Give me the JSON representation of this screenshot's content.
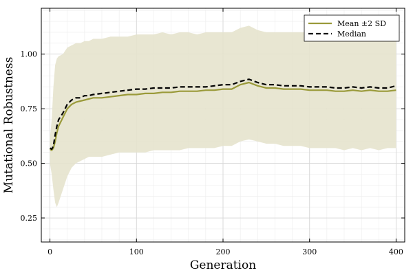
{
  "chart_data": {
    "type": "line",
    "title": "",
    "xlabel": "Generation",
    "ylabel": "Mutational Robustness",
    "xlim": [
      -10,
      410
    ],
    "ylim": [
      0.14,
      1.21
    ],
    "x_ticks": [
      0,
      100,
      200,
      300,
      400
    ],
    "x_tick_labels": [
      "0",
      "100",
      "200",
      "300",
      "400"
    ],
    "y_ticks": [
      0.25,
      0.5,
      0.75,
      1.0
    ],
    "y_tick_labels": [
      "0.25",
      "0.50",
      "0.75",
      "1.00"
    ],
    "grid": true,
    "legend_position": "top-right",
    "colors": {
      "mean": "#9a9a3a",
      "band": "#e6e3cd",
      "median": "#000000",
      "grid": "#d6d6d6"
    },
    "x": [
      0,
      2,
      4,
      6,
      8,
      10,
      15,
      20,
      25,
      30,
      35,
      40,
      45,
      50,
      60,
      70,
      80,
      90,
      100,
      110,
      120,
      130,
      140,
      150,
      160,
      170,
      180,
      190,
      200,
      210,
      220,
      230,
      240,
      250,
      260,
      270,
      280,
      290,
      300,
      310,
      320,
      330,
      340,
      350,
      360,
      370,
      380,
      390,
      400
    ],
    "series": [
      {
        "name": "Mean ±2 SD",
        "style": "solid",
        "values": [
          0.565,
          0.56,
          0.57,
          0.6,
          0.64,
          0.67,
          0.71,
          0.75,
          0.77,
          0.78,
          0.785,
          0.79,
          0.795,
          0.8,
          0.8,
          0.805,
          0.81,
          0.815,
          0.815,
          0.82,
          0.82,
          0.825,
          0.825,
          0.83,
          0.83,
          0.83,
          0.835,
          0.835,
          0.84,
          0.84,
          0.86,
          0.87,
          0.855,
          0.845,
          0.845,
          0.84,
          0.84,
          0.84,
          0.835,
          0.835,
          0.835,
          0.83,
          0.83,
          0.835,
          0.83,
          0.835,
          0.83,
          0.83,
          0.835
        ],
        "upper": [
          0.62,
          0.7,
          0.85,
          0.95,
          0.98,
          0.99,
          1.0,
          1.03,
          1.04,
          1.05,
          1.05,
          1.06,
          1.06,
          1.07,
          1.07,
          1.08,
          1.08,
          1.08,
          1.09,
          1.09,
          1.09,
          1.1,
          1.09,
          1.1,
          1.1,
          1.09,
          1.1,
          1.1,
          1.1,
          1.1,
          1.12,
          1.13,
          1.11,
          1.1,
          1.1,
          1.1,
          1.1,
          1.1,
          1.1,
          1.09,
          1.1,
          1.09,
          1.09,
          1.1,
          1.09,
          1.1,
          1.09,
          1.09,
          1.1
        ],
        "lower": [
          0.5,
          0.45,
          0.38,
          0.32,
          0.3,
          0.32,
          0.38,
          0.44,
          0.48,
          0.5,
          0.51,
          0.52,
          0.53,
          0.53,
          0.53,
          0.54,
          0.55,
          0.55,
          0.55,
          0.55,
          0.56,
          0.56,
          0.56,
          0.56,
          0.57,
          0.57,
          0.57,
          0.57,
          0.58,
          0.58,
          0.6,
          0.61,
          0.6,
          0.59,
          0.59,
          0.58,
          0.58,
          0.58,
          0.57,
          0.57,
          0.57,
          0.57,
          0.56,
          0.57,
          0.56,
          0.57,
          0.56,
          0.57,
          0.57
        ]
      },
      {
        "name": "Median",
        "style": "dashed",
        "values": [
          0.57,
          0.565,
          0.58,
          0.63,
          0.67,
          0.7,
          0.73,
          0.77,
          0.79,
          0.8,
          0.8,
          0.81,
          0.81,
          0.815,
          0.82,
          0.825,
          0.83,
          0.835,
          0.84,
          0.84,
          0.845,
          0.845,
          0.845,
          0.85,
          0.85,
          0.85,
          0.85,
          0.855,
          0.86,
          0.86,
          0.875,
          0.885,
          0.87,
          0.86,
          0.86,
          0.855,
          0.855,
          0.855,
          0.85,
          0.85,
          0.85,
          0.845,
          0.845,
          0.85,
          0.845,
          0.85,
          0.845,
          0.845,
          0.855
        ]
      }
    ]
  }
}
